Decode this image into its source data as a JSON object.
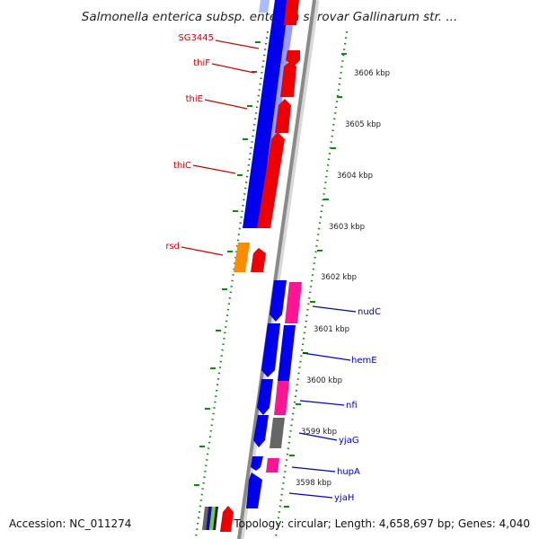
{
  "title": "Salmonella enterica subsp. enterica serovar Gallinarum str. ...",
  "footer": {
    "accession": "Accession: NC_011274",
    "topology": "Topology: circular; Length: 4,658,697 bp; Genes: 4,040"
  },
  "colors": {
    "ruler": "#118811",
    "backbone": "#8a8a8a",
    "blue_cds": "#0000ee",
    "red_cds": "#ee0000",
    "orange_cds": "#ff8c00",
    "magenta_cds": "#ff1493",
    "gray_cds": "#666666",
    "left_label": "#cc0000",
    "right_label": "#0000cc"
  },
  "scale_labels": [
    "3606 kbp",
    "3605 kbp",
    "3604 kbp",
    "3603 kbp",
    "3602 kbp",
    "3601 kbp",
    "3600 kbp",
    "3599 kbp",
    "3598 kbp"
  ],
  "left_genes": [
    "SG3445",
    "thiF",
    "thiE",
    "thiC",
    "rsd"
  ],
  "right_genes": [
    "nudC",
    "hemE",
    "nfi",
    "yjaG",
    "hupA",
    "yjaH"
  ]
}
